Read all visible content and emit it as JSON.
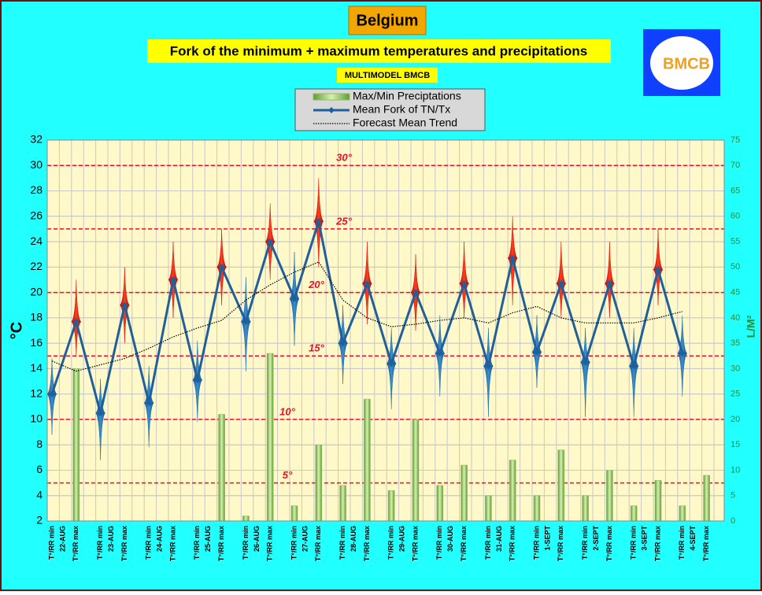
{
  "logo": {
    "text": "BMCB"
  },
  "chart_data": {
    "type": "combo",
    "title": "Belgium",
    "subtitle": "Fork of the minimum + maximum temperatures and precipitations",
    "note": "MULTIMODEL BMCB",
    "y_label": "°C",
    "y2_label": "L/M²",
    "categories": [
      "T°/RR min",
      "T°/RR max",
      "T°/RR min",
      "T°/RR max",
      "T°/RR min",
      "T°/RR max",
      "T°/RR min",
      "T°/RR max",
      "T°/RR min",
      "T°/RR max",
      "T°/RR min",
      "T°/RR max",
      "T°/RR min",
      "T°/RR max",
      "T°/RR min",
      "T°/RR max",
      "T°/RR min",
      "T°/RR max",
      "T°/RR min",
      "T°/RR max",
      "T°/RR min",
      "T°/RR max",
      "T°/RR min",
      "T°/RR max",
      "T°/RR min",
      "T°/RR max",
      "T°/RR min",
      "T°/RR max"
    ],
    "dates": [
      "22-AUG",
      "23-AUG",
      "24-AUG",
      "25-AUG",
      "26-AUG",
      "27-AUG",
      "28-AUG",
      "29-AUG",
      "30-AUG",
      "31-AUG",
      "1-SEPT",
      "2-SEPT",
      "3-SEPT",
      "4-SEPT"
    ],
    "ylim": [
      2,
      32
    ],
    "yticks": [
      2,
      4,
      6,
      8,
      10,
      12,
      14,
      16,
      18,
      20,
      22,
      24,
      26,
      28,
      30,
      32
    ],
    "y2lim": [
      0,
      75
    ],
    "y2ticks": [
      0,
      5,
      10,
      15,
      20,
      25,
      30,
      35,
      40,
      45,
      50,
      55,
      60,
      65,
      70,
      75
    ],
    "grid": true,
    "reference_lines": [
      {
        "value": 30,
        "label": "30°"
      },
      {
        "value": 25,
        "label": "25°"
      },
      {
        "value": 20,
        "label": "20°"
      },
      {
        "value": 15,
        "label": "15°"
      },
      {
        "value": 10,
        "label": "10°"
      },
      {
        "value": 5,
        "label": "5°"
      }
    ],
    "reference_color": "#e8102a",
    "series": [
      {
        "name": "Max/Min Preciptations",
        "color": "#8cc060",
        "axis": "y2",
        "values": [
          0,
          30,
          0,
          0,
          0,
          0,
          0,
          21,
          1,
          33,
          3,
          15,
          7,
          24,
          6,
          20,
          7,
          11,
          5,
          12,
          5,
          14,
          5,
          10,
          3,
          8,
          3,
          9
        ]
      },
      {
        "name": "Mean Fork of TN/Tx",
        "color": "#1f5f9a",
        "values": [
          12,
          17.7,
          10.5,
          19,
          11.3,
          21,
          13.1,
          22,
          17.7,
          24,
          19.5,
          25.6,
          16,
          20.7,
          14.4,
          20,
          15.2,
          20.7,
          14.2,
          22.7,
          15.3,
          20.7,
          14.5,
          20.7,
          14.2,
          21.8,
          15.2,
          null
        ]
      },
      {
        "name": "Forecast Mean Trend",
        "color": "#000000",
        "values": [
          14.6,
          13.8,
          14.3,
          14.8,
          15.6,
          16.5,
          17.2,
          17.8,
          19.4,
          20.6,
          21.6,
          22.4,
          19.4,
          18,
          17.3,
          17.5,
          17.8,
          18,
          17.6,
          18.4,
          18.9,
          18,
          17.6,
          17.6,
          17.6,
          18,
          18.5,
          null
        ]
      }
    ],
    "forks": {
      "colors": [
        "#1a6aa8",
        "#d01010"
      ],
      "low": [
        8.8,
        15,
        6.8,
        16,
        7.8,
        18,
        9.8,
        19,
        13.8,
        21,
        15.8,
        22,
        12.8,
        17.5,
        10.8,
        17,
        11.8,
        18,
        10.2,
        19,
        12.5,
        18,
        10.2,
        18,
        10.2,
        19,
        11.8,
        null
      ],
      "high": [
        14.8,
        21,
        13.2,
        22,
        14.2,
        24,
        16.2,
        25,
        21.2,
        27,
        23.2,
        29,
        19,
        24,
        17.2,
        23,
        18.2,
        24,
        17.2,
        26,
        18.2,
        24,
        17.2,
        24,
        17.2,
        25,
        18.2,
        null
      ]
    }
  }
}
